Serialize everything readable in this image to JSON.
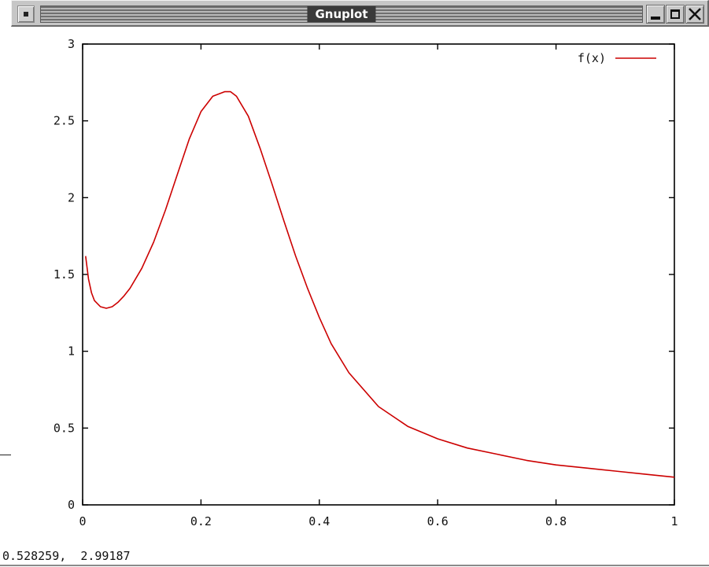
{
  "window": {
    "title": "Gnuplot",
    "icons": [
      "window-menu-icon",
      "minimize-icon",
      "maximize-icon",
      "close-icon"
    ]
  },
  "status_bar": {
    "coordinates": "0.528259,  2.99187"
  },
  "chart_data": {
    "type": "line",
    "xlim": [
      0,
      1
    ],
    "ylim": [
      0,
      3
    ],
    "xticks": [
      0,
      0.2,
      0.4,
      0.6,
      0.8,
      1
    ],
    "xtick_labels": [
      "0",
      "0.2",
      "0.4",
      "0.6",
      "0.8",
      "1"
    ],
    "yticks": [
      0,
      0.5,
      1,
      1.5,
      2,
      2.5,
      3
    ],
    "ytick_labels": [
      "0",
      "0.5",
      "1",
      "1.5",
      "2",
      "2.5",
      "3"
    ],
    "grid": false,
    "legend_position": "top-right",
    "series": [
      {
        "name": "f(x)",
        "color": "#cc0000",
        "x": [
          0.005,
          0.01,
          0.015,
          0.02,
          0.03,
          0.04,
          0.05,
          0.06,
          0.07,
          0.08,
          0.1,
          0.12,
          0.14,
          0.16,
          0.18,
          0.2,
          0.22,
          0.24,
          0.25,
          0.26,
          0.28,
          0.3,
          0.32,
          0.34,
          0.36,
          0.38,
          0.4,
          0.42,
          0.45,
          0.5,
          0.55,
          0.6,
          0.65,
          0.7,
          0.75,
          0.8,
          0.85,
          0.9,
          0.95,
          1.0
        ],
        "y": [
          1.62,
          1.47,
          1.38,
          1.33,
          1.29,
          1.28,
          1.29,
          1.32,
          1.36,
          1.41,
          1.54,
          1.71,
          1.92,
          2.15,
          2.38,
          2.56,
          2.66,
          2.69,
          2.69,
          2.66,
          2.53,
          2.32,
          2.09,
          1.85,
          1.62,
          1.41,
          1.22,
          1.05,
          0.86,
          0.64,
          0.51,
          0.43,
          0.37,
          0.33,
          0.29,
          0.26,
          0.24,
          0.22,
          0.2,
          0.18
        ]
      }
    ]
  }
}
